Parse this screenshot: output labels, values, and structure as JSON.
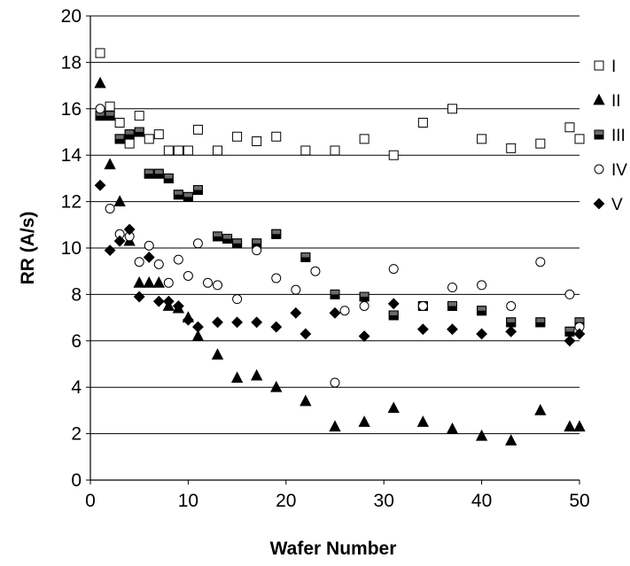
{
  "chart_data": {
    "type": "scatter",
    "title": "",
    "xlabel": "Wafer Number",
    "ylabel": "RR (A/s)",
    "xlim": [
      0,
      50
    ],
    "ylim": [
      0,
      20
    ],
    "x_ticks": [
      0,
      10,
      20,
      30,
      40,
      50
    ],
    "y_ticks": [
      0,
      2,
      4,
      6,
      8,
      10,
      12,
      14,
      16,
      18,
      20
    ],
    "grid": "horizontal",
    "legend_position": "right",
    "series": [
      {
        "name": "I",
        "marker": "open-square",
        "points": [
          [
            1,
            18.4
          ],
          [
            2,
            16.1
          ],
          [
            3,
            15.4
          ],
          [
            4,
            14.5
          ],
          [
            5,
            15.7
          ],
          [
            6,
            14.7
          ],
          [
            7,
            14.9
          ],
          [
            8,
            14.2
          ],
          [
            9,
            14.2
          ],
          [
            10,
            14.2
          ],
          [
            11,
            15.1
          ],
          [
            13,
            14.2
          ],
          [
            15,
            14.8
          ],
          [
            17,
            14.6
          ],
          [
            19,
            14.8
          ],
          [
            22,
            14.2
          ],
          [
            25,
            14.2
          ],
          [
            28,
            14.7
          ],
          [
            31,
            14.0
          ],
          [
            34,
            15.4
          ],
          [
            37,
            16.0
          ],
          [
            40,
            14.7
          ],
          [
            43,
            14.3
          ],
          [
            46,
            14.5
          ],
          [
            49,
            15.2
          ],
          [
            50,
            14.7
          ]
        ]
      },
      {
        "name": "II",
        "marker": "filled-triangle",
        "points": [
          [
            1,
            17.1
          ],
          [
            2,
            13.6
          ],
          [
            3,
            12.0
          ],
          [
            4,
            10.3
          ],
          [
            5,
            8.5
          ],
          [
            6,
            8.5
          ],
          [
            7,
            8.5
          ],
          [
            8,
            7.5
          ],
          [
            9,
            7.4
          ],
          [
            10,
            7.0
          ],
          [
            11,
            6.2
          ],
          [
            13,
            5.4
          ],
          [
            15,
            4.4
          ],
          [
            17,
            4.5
          ],
          [
            19,
            4.0
          ],
          [
            22,
            3.4
          ],
          [
            25,
            2.3
          ],
          [
            28,
            2.5
          ],
          [
            31,
            3.1
          ],
          [
            34,
            2.5
          ],
          [
            37,
            2.2
          ],
          [
            40,
            1.9
          ],
          [
            43,
            1.7
          ],
          [
            46,
            3.0
          ],
          [
            49,
            2.3
          ],
          [
            50,
            2.3
          ]
        ]
      },
      {
        "name": "III",
        "marker": "half-filled-square",
        "points": [
          [
            1,
            15.7
          ],
          [
            2,
            15.7
          ],
          [
            3,
            14.7
          ],
          [
            4,
            14.9
          ],
          [
            5,
            15.0
          ],
          [
            6,
            13.2
          ],
          [
            7,
            13.2
          ],
          [
            8,
            13.0
          ],
          [
            9,
            12.3
          ],
          [
            10,
            12.2
          ],
          [
            11,
            12.5
          ],
          [
            13,
            10.5
          ],
          [
            14,
            10.4
          ],
          [
            15,
            10.2
          ],
          [
            17,
            10.2
          ],
          [
            19,
            10.6
          ],
          [
            22,
            9.6
          ],
          [
            25,
            8.0
          ],
          [
            28,
            7.9
          ],
          [
            31,
            7.1
          ],
          [
            34,
            7.5
          ],
          [
            37,
            7.5
          ],
          [
            40,
            7.3
          ],
          [
            43,
            6.8
          ],
          [
            46,
            6.8
          ],
          [
            49,
            6.4
          ],
          [
            50,
            6.8
          ]
        ]
      },
      {
        "name": "IV",
        "marker": "open-circle",
        "points": [
          [
            1,
            16.0
          ],
          [
            2,
            11.7
          ],
          [
            3,
            10.6
          ],
          [
            4,
            10.5
          ],
          [
            5,
            9.4
          ],
          [
            6,
            10.1
          ],
          [
            7,
            9.3
          ],
          [
            8,
            8.5
          ],
          [
            9,
            9.5
          ],
          [
            10,
            8.8
          ],
          [
            11,
            10.2
          ],
          [
            12,
            8.5
          ],
          [
            13,
            8.4
          ],
          [
            15,
            7.8
          ],
          [
            17,
            9.9
          ],
          [
            19,
            8.7
          ],
          [
            21,
            8.2
          ],
          [
            23,
            9.0
          ],
          [
            25,
            4.2
          ],
          [
            26,
            7.3
          ],
          [
            28,
            7.5
          ],
          [
            31,
            9.1
          ],
          [
            34,
            7.5
          ],
          [
            37,
            8.3
          ],
          [
            40,
            8.4
          ],
          [
            43,
            7.5
          ],
          [
            46,
            9.4
          ],
          [
            49,
            8.0
          ],
          [
            50,
            6.6
          ]
        ]
      },
      {
        "name": "V",
        "marker": "filled-diamond",
        "points": [
          [
            1,
            12.7
          ],
          [
            2,
            9.9
          ],
          [
            3,
            10.3
          ],
          [
            4,
            10.8
          ],
          [
            5,
            7.9
          ],
          [
            6,
            9.6
          ],
          [
            7,
            7.7
          ],
          [
            8,
            7.7
          ],
          [
            9,
            7.5
          ],
          [
            10,
            6.9
          ],
          [
            11,
            6.6
          ],
          [
            13,
            6.8
          ],
          [
            15,
            6.8
          ],
          [
            17,
            6.8
          ],
          [
            19,
            6.6
          ],
          [
            21,
            7.2
          ],
          [
            22,
            6.3
          ],
          [
            25,
            7.2
          ],
          [
            28,
            6.2
          ],
          [
            31,
            7.6
          ],
          [
            34,
            6.5
          ],
          [
            37,
            6.5
          ],
          [
            40,
            6.3
          ],
          [
            43,
            6.4
          ],
          [
            49,
            6.0
          ],
          [
            50,
            6.3
          ]
        ]
      }
    ]
  }
}
